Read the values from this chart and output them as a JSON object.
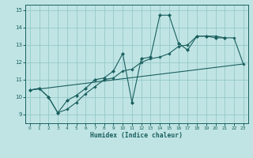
{
  "background_color": "#c0e4e4",
  "grid_color": "#96c8c8",
  "line_color": "#1a5f5f",
  "xlabel": "Humidex (Indice chaleur)",
  "xlim": [
    -0.5,
    23.5
  ],
  "ylim": [
    8.5,
    15.3
  ],
  "yticks": [
    9,
    10,
    11,
    12,
    13,
    14,
    15
  ],
  "xticks": [
    0,
    1,
    2,
    3,
    4,
    5,
    6,
    7,
    8,
    9,
    10,
    11,
    12,
    13,
    14,
    15,
    16,
    17,
    18,
    19,
    20,
    21,
    22,
    23
  ],
  "line1_x": [
    0,
    1,
    2,
    3,
    4,
    5,
    6,
    7,
    8,
    9,
    10,
    11,
    12,
    13,
    14,
    15,
    16,
    17,
    18,
    19,
    20,
    21
  ],
  "line1_y": [
    10.4,
    10.5,
    10.0,
    9.1,
    9.8,
    10.1,
    10.5,
    11.0,
    11.1,
    11.5,
    12.5,
    9.7,
    12.2,
    12.3,
    14.7,
    14.7,
    13.1,
    12.7,
    13.5,
    13.5,
    13.4,
    13.4
  ],
  "line2_x": [
    0,
    23
  ],
  "line2_y": [
    10.4,
    11.9
  ],
  "line3_x": [
    0,
    1,
    2,
    3,
    4,
    5,
    6,
    7,
    8,
    9,
    10,
    11,
    12,
    13,
    14,
    15,
    16,
    17,
    18,
    19,
    20,
    21,
    22,
    23
  ],
  "line3_y": [
    10.4,
    10.5,
    10.0,
    9.1,
    9.3,
    9.7,
    10.2,
    10.6,
    11.0,
    11.1,
    11.5,
    11.6,
    12.0,
    12.2,
    12.3,
    12.5,
    12.9,
    13.0,
    13.5,
    13.5,
    13.5,
    13.4,
    13.4,
    11.9
  ]
}
